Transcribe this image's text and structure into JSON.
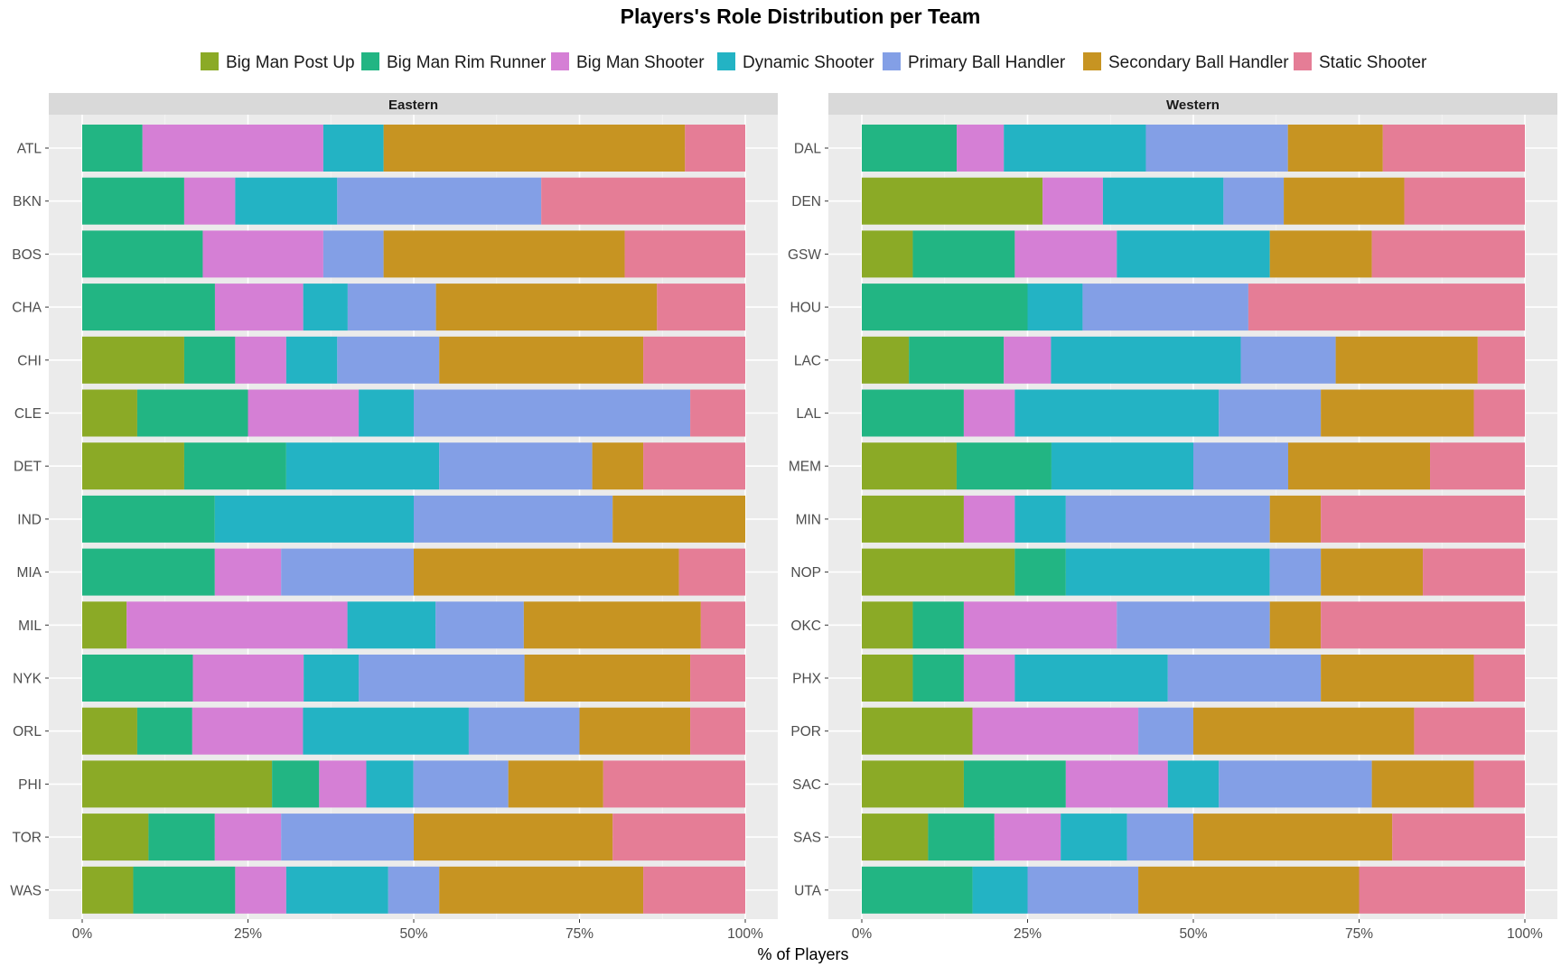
{
  "chart_data": {
    "type": "bar",
    "orientation": "horizontal",
    "stacked": "percent",
    "title": "Players's Role Distribution per Team",
    "xlabel": "% of Players",
    "ylabel": "",
    "xlim": [
      0,
      1
    ],
    "x_ticks": [
      "0%",
      "25%",
      "50%",
      "75%",
      "100%"
    ],
    "legend_position": "top",
    "grid": true,
    "roles": [
      "Big Man Post Up",
      "Big Man Rim Runner",
      "Big Man Shooter",
      "Dynamic Shooter",
      "Primary Ball Handler",
      "Secondary Ball Handler",
      "Static Shooter"
    ],
    "colors": [
      "#8BAA26",
      "#22B583",
      "#D57FD5",
      "#23B3C4",
      "#839FE6",
      "#C79422",
      "#E57D96"
    ],
    "facets": [
      {
        "name": "Eastern",
        "categories": [
          "ATL",
          "BKN",
          "BOS",
          "CHA",
          "CHI",
          "CLE",
          "DET",
          "IND",
          "MIA",
          "MIL",
          "NYK",
          "ORL",
          "PHI",
          "TOR",
          "WAS"
        ],
        "values": [
          [
            0,
            0.091,
            0.273,
            0.091,
            0,
            0.455,
            0.091
          ],
          [
            0,
            0.154,
            0.077,
            0.154,
            0.308,
            0,
            0.308
          ],
          [
            0,
            0.182,
            0.182,
            0,
            0.091,
            0.364,
            0.182
          ],
          [
            0,
            0.2,
            0.133,
            0.067,
            0.133,
            0.333,
            0.133
          ],
          [
            0.154,
            0.077,
            0.077,
            0.077,
            0.154,
            0.308,
            0.154
          ],
          [
            0.083,
            0.167,
            0.167,
            0.083,
            0.417,
            0,
            0.083
          ],
          [
            0.154,
            0.154,
            0,
            0.231,
            0.231,
            0.077,
            0.154
          ],
          [
            0,
            0.2,
            0,
            0.3,
            0.3,
            0.2,
            0
          ],
          [
            0,
            0.2,
            0.1,
            0,
            0.2,
            0.4,
            0.1
          ],
          [
            0.067,
            0,
            0.333,
            0.133,
            0.133,
            0.267,
            0.067
          ],
          [
            0,
            0.167,
            0.167,
            0.083,
            0.25,
            0.25,
            0.083
          ],
          [
            0.083,
            0.083,
            0.167,
            0.25,
            0.167,
            0.167,
            0.083
          ],
          [
            0.286,
            0.071,
            0.071,
            0.071,
            0.143,
            0.143,
            0.214
          ],
          [
            0.1,
            0.1,
            0.1,
            0,
            0.2,
            0.3,
            0.2
          ],
          [
            0.077,
            0.154,
            0.077,
            0.154,
            0.077,
            0.308,
            0.154
          ]
        ]
      },
      {
        "name": "Western",
        "categories": [
          "DAL",
          "DEN",
          "GSW",
          "HOU",
          "LAC",
          "LAL",
          "MEM",
          "MIN",
          "NOP",
          "OKC",
          "PHX",
          "POR",
          "SAC",
          "SAS",
          "UTA"
        ],
        "values": [
          [
            0,
            0.143,
            0.071,
            0.214,
            0.214,
            0.143,
            0.214
          ],
          [
            0.273,
            0,
            0.091,
            0.182,
            0.091,
            0.182,
            0.182
          ],
          [
            0.077,
            0.154,
            0.154,
            0.231,
            0,
            0.154,
            0.231
          ],
          [
            0,
            0.25,
            0,
            0.083,
            0.25,
            0,
            0.417
          ],
          [
            0.071,
            0.143,
            0.071,
            0.286,
            0.143,
            0.214,
            0.071
          ],
          [
            0,
            0.154,
            0.077,
            0.308,
            0.154,
            0.231,
            0.077
          ],
          [
            0.143,
            0.143,
            0,
            0.214,
            0.143,
            0.214,
            0.143
          ],
          [
            0.154,
            0,
            0.077,
            0.077,
            0.308,
            0.077,
            0.308
          ],
          [
            0.231,
            0.077,
            0,
            0.308,
            0.077,
            0.154,
            0.154
          ],
          [
            0.077,
            0.077,
            0.231,
            0,
            0.231,
            0.077,
            0.308
          ],
          [
            0.077,
            0.077,
            0.077,
            0.231,
            0.231,
            0.231,
            0.077
          ],
          [
            0.167,
            0,
            0.25,
            0,
            0.083,
            0.333,
            0.167
          ],
          [
            0.154,
            0.154,
            0.154,
            0.077,
            0.231,
            0.154,
            0.077
          ],
          [
            0.1,
            0.1,
            0.1,
            0.1,
            0.1,
            0.3,
            0.2
          ],
          [
            0,
            0.167,
            0,
            0.083,
            0.167,
            0.333,
            0.25
          ]
        ]
      }
    ]
  }
}
